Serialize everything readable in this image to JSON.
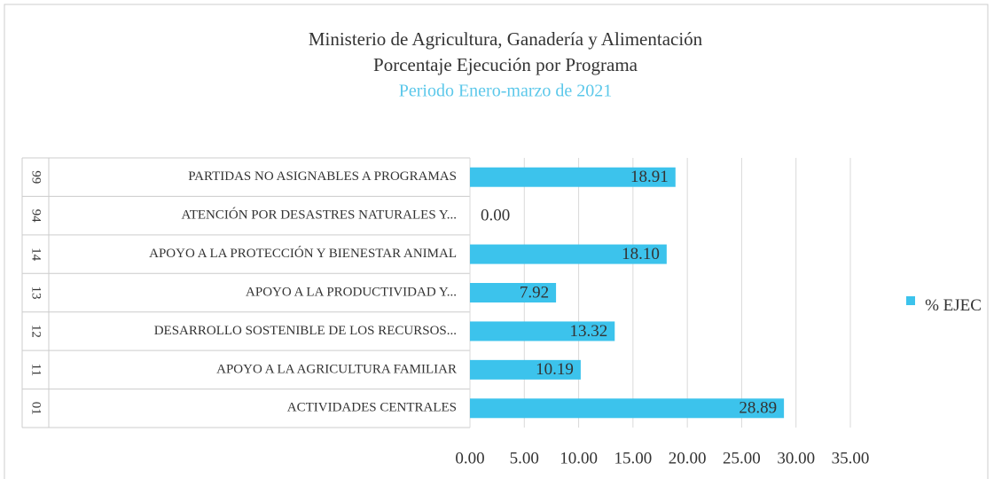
{
  "chart_data": {
    "type": "bar",
    "title": "Ministerio de Agricultura, Ganadería y Alimentación",
    "subtitle": "Porcentaje Ejecución  por Programa",
    "period": "Periodo Enero-marzo de  2021",
    "category_codes": [
      "01",
      "11",
      "12",
      "13",
      "14",
      "94",
      "99"
    ],
    "categories": [
      "ACTIVIDADES CENTRALES",
      "APOYO A LA AGRICULTURA FAMILIAR",
      "DESARROLLO SOSTENIBLE DE LOS RECURSOS...",
      "APOYO A LA PRODUCTIVIDAD Y...",
      "APOYO A LA PROTECCIÓN Y BIENESTAR ANIMAL",
      "ATENCIÓN POR DESASTRES NATURALES Y...",
      "PARTIDAS NO ASIGNABLES A PROGRAMAS"
    ],
    "series": [
      {
        "name": "% EJEC",
        "color": "#3cc3ec",
        "values": [
          28.89,
          10.19,
          13.32,
          7.92,
          18.1,
          0,
          18.91
        ],
        "value_labels": [
          "28.89",
          "10.19",
          "13.32",
          "7.92",
          "18.10",
          "0.00",
          "18.91"
        ]
      }
    ],
    "xlim": [
      0,
      35
    ],
    "xticks": [
      {
        "value": 0,
        "label": "0.00"
      },
      {
        "value": 5,
        "label": "5.00"
      },
      {
        "value": 10,
        "label": "10.00"
      },
      {
        "value": 15,
        "label": "15.00"
      },
      {
        "value": 20,
        "label": "20.00"
      },
      {
        "value": 25,
        "label": "25.00"
      },
      {
        "value": 30,
        "label": "30.00"
      },
      {
        "value": 35,
        "label": "35.00"
      }
    ],
    "grid": true,
    "legend": "right"
  }
}
